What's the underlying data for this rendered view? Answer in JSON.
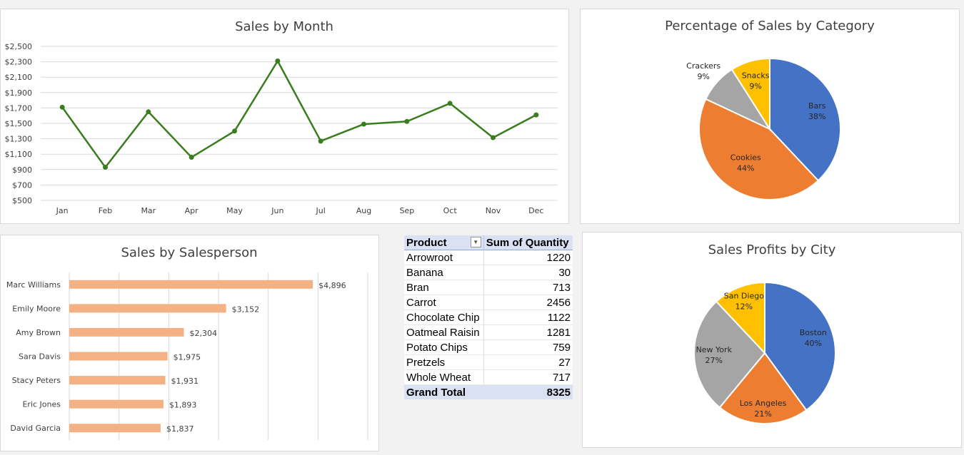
{
  "chart_data": [
    {
      "type": "line",
      "title": "Sales by Month",
      "categories": [
        "Jan",
        "Feb",
        "Mar",
        "Apr",
        "May",
        "Jun",
        "Jul",
        "Aug",
        "Sep",
        "Oct",
        "Nov",
        "Dec"
      ],
      "values": [
        1710,
        930,
        1650,
        1060,
        1400,
        2310,
        1270,
        1490,
        1525,
        1760,
        1315,
        1610
      ],
      "ylim": [
        500,
        2500
      ],
      "yticks": [
        500,
        700,
        900,
        1100,
        1300,
        1500,
        1700,
        1900,
        2100,
        2300,
        2500
      ],
      "ytick_labels": [
        "$500",
        "$700",
        "$900",
        "$1,100",
        "$1,300",
        "$1,500",
        "$1,700",
        "$1,900",
        "$2,100",
        "$2,300",
        "$2,500"
      ],
      "grid": true,
      "color": "#3a7d1e"
    },
    {
      "type": "pie",
      "title": "Percentage of Sales by Category",
      "slices": [
        {
          "label": "Bars",
          "value": 38,
          "pct": "38%",
          "color": "#4472c4"
        },
        {
          "label": "Cookies",
          "value": 44,
          "pct": "44%",
          "color": "#ed7d31"
        },
        {
          "label": "Crackers",
          "value": 9,
          "pct": "9%",
          "color": "#a5a5a5"
        },
        {
          "label": "Snacks",
          "value": 9,
          "pct": "9%",
          "color": "#ffc000"
        }
      ]
    },
    {
      "type": "bar",
      "orientation": "horizontal",
      "title": "Sales by Salesperson",
      "categories": [
        "Marc Williams",
        "Emily Moore",
        "Amy Brown",
        "Sara Davis",
        "Stacy Peters",
        "Eric Jones",
        "David Garcia"
      ],
      "values": [
        4896,
        3152,
        2304,
        1975,
        1931,
        1893,
        1837
      ],
      "value_labels": [
        "$4,896",
        "$3,152",
        "$2,304",
        "$1,975",
        "$1,931",
        "$1,893",
        "$1,837"
      ],
      "xlim": [
        0,
        6000
      ],
      "grid": true,
      "color": "#f4b183"
    },
    {
      "type": "pie",
      "title": "Sales Profits by City",
      "slices": [
        {
          "label": "Boston",
          "value": 40,
          "pct": "40%",
          "color": "#4472c4"
        },
        {
          "label": "Los Angeles",
          "value": 21,
          "pct": "21%",
          "color": "#ed7d31"
        },
        {
          "label": "New York",
          "value": 27,
          "pct": "27%",
          "color": "#a5a5a5"
        },
        {
          "label": "San Diego",
          "value": 12,
          "pct": "12%",
          "color": "#ffc000"
        }
      ]
    },
    {
      "type": "table",
      "columns": [
        "Product",
        "Sum of Quantity"
      ],
      "rows": [
        [
          "Arrowroot",
          "1220"
        ],
        [
          "Banana",
          "30"
        ],
        [
          "Bran",
          "713"
        ],
        [
          "Carrot",
          "2456"
        ],
        [
          "Chocolate Chip",
          "1122"
        ],
        [
          "Oatmeal Raisin",
          "1281"
        ],
        [
          "Potato Chips",
          "759"
        ],
        [
          "Pretzels",
          "27"
        ],
        [
          "Whole Wheat",
          "717"
        ]
      ],
      "total": [
        "Grand Total",
        "8325"
      ],
      "filter_icon": "dropdown-arrow-icon"
    }
  ]
}
